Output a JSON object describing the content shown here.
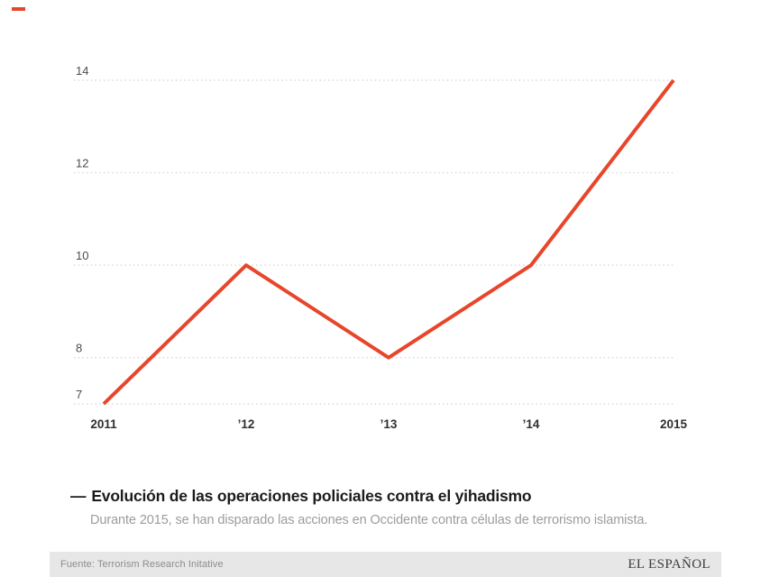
{
  "brand": {
    "dash_color": "#e8462b"
  },
  "chart_data": {
    "type": "line",
    "title": "Evolución de las operaciones policiales contra el yihadismo",
    "subtitle": "Durante 2015, se han disparado las acciones en Occidente contra células de terrorismo islamista.",
    "x": [
      2011,
      2012,
      2013,
      2014,
      2015
    ],
    "x_tick_labels": [
      "2011",
      "’12",
      "’13",
      "’14",
      "2015"
    ],
    "values": [
      7,
      10,
      8,
      10,
      14
    ],
    "y_ticks": [
      7,
      8,
      10,
      12,
      14
    ],
    "ylim": [
      7,
      14
    ],
    "grid": "horizontal-dotted",
    "legend": "none",
    "line_color": "#e8462b",
    "gridline_color": "#d2d2d2",
    "y_label_color": "#4c4c4c",
    "x_label_color": "#2f2f2f"
  },
  "caption": {
    "dash": "—"
  },
  "footer": {
    "source": "Fuente: Terrorism Research Initative",
    "masthead": "EL ESPAÑOL"
  }
}
